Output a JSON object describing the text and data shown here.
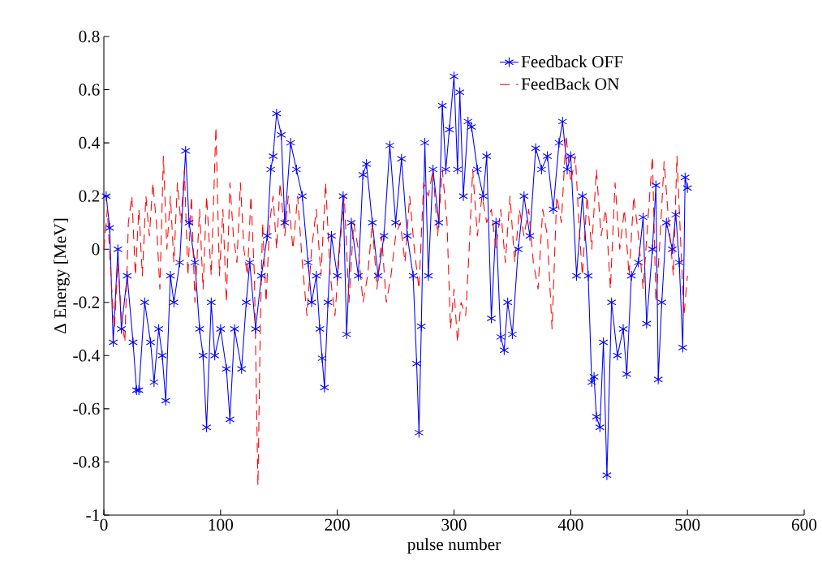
{
  "chart_data": {
    "type": "line",
    "xlabel": "pulse number",
    "ylabel": "Δ Energy [MeV]",
    "xlim": [
      0,
      600
    ],
    "ylim": [
      -1,
      0.8
    ],
    "xticks": [
      0,
      100,
      200,
      300,
      400,
      500,
      600
    ],
    "yticks": [
      -1,
      -0.8,
      -0.6,
      -0.4,
      -0.2,
      0,
      0.2,
      0.4,
      0.6,
      0.8
    ],
    "legend": "top right",
    "grid": false,
    "series": [
      {
        "name": "Feedback OFF",
        "color": "#0000ff",
        "marker": "cross",
        "line_style": "solid",
        "x": [
          2,
          5,
          8,
          12,
          15,
          20,
          25,
          28,
          30,
          35,
          40,
          43,
          47,
          50,
          53,
          57,
          60,
          65,
          70,
          73,
          78,
          82,
          85,
          88,
          92,
          95,
          100,
          105,
          108,
          112,
          118,
          122,
          125,
          130,
          135,
          140,
          143,
          145,
          148,
          152,
          155,
          160,
          165,
          170,
          175,
          178,
          182,
          185,
          187,
          189,
          192,
          195,
          200,
          205,
          208,
          212,
          218,
          222,
          225,
          230,
          235,
          240,
          245,
          250,
          255,
          260,
          265,
          268,
          270,
          272,
          275,
          278,
          282,
          287,
          290,
          293,
          296,
          300,
          303,
          305,
          308,
          312,
          315,
          320,
          325,
          328,
          332,
          336,
          340,
          343,
          346,
          350,
          355,
          360,
          365,
          370,
          375,
          380,
          385,
          390,
          393,
          397,
          400,
          405,
          410,
          415,
          418,
          420,
          422,
          425,
          428,
          431,
          435,
          440,
          445,
          448,
          452,
          458,
          462,
          465,
          470,
          473,
          475,
          478,
          482,
          487,
          490,
          493,
          496,
          498,
          500
        ],
        "values": [
          0.2,
          0.08,
          -0.35,
          0.0,
          -0.3,
          -0.1,
          -0.35,
          -0.53,
          -0.53,
          -0.2,
          -0.35,
          -0.5,
          -0.3,
          -0.4,
          -0.57,
          -0.1,
          -0.2,
          -0.05,
          0.37,
          0.1,
          -0.05,
          -0.3,
          -0.4,
          -0.67,
          -0.2,
          -0.4,
          -0.3,
          -0.45,
          -0.64,
          -0.3,
          -0.45,
          -0.2,
          -0.05,
          -0.3,
          -0.1,
          0.05,
          0.3,
          0.35,
          0.51,
          0.43,
          0.1,
          0.4,
          0.3,
          0.2,
          -0.05,
          -0.2,
          -0.1,
          -0.3,
          -0.41,
          -0.52,
          -0.2,
          0.05,
          -0.1,
          0.2,
          -0.32,
          0.1,
          -0.1,
          0.28,
          0.32,
          0.1,
          -0.1,
          0.05,
          0.39,
          0.1,
          0.34,
          0.05,
          -0.1,
          -0.43,
          -0.69,
          -0.29,
          0.4,
          -0.1,
          0.3,
          0.1,
          0.54,
          0.3,
          0.45,
          0.65,
          0.3,
          0.59,
          0.2,
          0.48,
          0.46,
          0.3,
          0.2,
          0.35,
          -0.26,
          0.1,
          -0.33,
          -0.38,
          -0.2,
          -0.32,
          0.0,
          0.2,
          0.05,
          0.38,
          0.3,
          0.35,
          0.15,
          0.4,
          0.48,
          0.3,
          0.35,
          -0.1,
          0.2,
          -0.1,
          -0.5,
          -0.48,
          -0.63,
          -0.67,
          -0.35,
          -0.85,
          -0.2,
          -0.4,
          -0.3,
          -0.47,
          -0.1,
          -0.05,
          0.12,
          -0.28,
          0.0,
          0.24,
          -0.49,
          -0.2,
          0.1,
          0.0,
          0.13,
          -0.05,
          -0.37,
          0.27,
          0.23
        ]
      },
      {
        "name": "FeedBack ON",
        "color": "#ff0000",
        "marker": "none",
        "line_style": "dashed",
        "x": [
          0,
          3,
          6,
          9,
          12,
          15,
          18,
          21,
          24,
          27,
          30,
          33,
          36,
          39,
          42,
          45,
          48,
          51,
          54,
          57,
          60,
          63,
          66,
          69,
          72,
          75,
          78,
          82,
          85,
          88,
          92,
          96,
          99,
          102,
          105,
          108,
          111,
          114,
          117,
          120,
          123,
          126,
          129,
          132,
          134,
          136,
          139,
          142,
          145,
          148,
          151,
          155,
          158,
          162,
          166,
          170,
          174,
          178,
          182,
          186,
          190,
          194,
          198,
          202,
          206,
          210,
          214,
          218,
          222,
          226,
          230,
          234,
          238,
          242,
          246,
          250,
          254,
          258,
          262,
          266,
          270,
          274,
          278,
          282,
          286,
          290,
          294,
          297,
          300,
          303,
          306,
          310,
          313,
          316,
          320,
          324,
          328,
          332,
          336,
          340,
          344,
          348,
          352,
          356,
          360,
          364,
          368,
          372,
          376,
          380,
          384,
          388,
          392,
          396,
          400,
          404,
          407,
          410,
          414,
          418,
          422,
          426,
          430,
          434,
          438,
          442,
          446,
          450,
          454,
          458,
          462,
          466,
          470,
          473,
          476,
          480,
          484,
          488,
          491,
          494,
          497,
          500
        ],
        "values": [
          0.0,
          0.15,
          -0.1,
          -0.3,
          -0.05,
          -0.25,
          -0.35,
          0.1,
          0.2,
          -0.1,
          0.15,
          -0.1,
          0.2,
          0.05,
          0.25,
          0.1,
          -0.15,
          0.35,
          0.0,
          0.2,
          -0.05,
          0.25,
          0.1,
          0.3,
          -0.1,
          0.2,
          -0.2,
          0.15,
          -0.15,
          0.2,
          -0.1,
          0.46,
          -0.1,
          0.15,
          -0.2,
          0.25,
          0.05,
          -0.05,
          0.25,
          0.0,
          -0.1,
          0.2,
          -0.1,
          -0.89,
          -0.3,
          0.1,
          -0.2,
          0.1,
          0.2,
          0.0,
          0.25,
          0.05,
          0.2,
          0.0,
          0.2,
          -0.05,
          -0.25,
          0.0,
          0.15,
          -0.1,
          0.25,
          -0.1,
          -0.25,
          0.0,
          0.2,
          -0.2,
          0.1,
          0.0,
          -0.2,
          -0.1,
          0.1,
          -0.15,
          0.05,
          -0.2,
          -0.1,
          0.05,
          0.1,
          -0.05,
          0.2,
          0.0,
          -0.15,
          0.25,
          0.2,
          0.3,
          0.05,
          0.3,
          0.1,
          -0.3,
          -0.15,
          -0.35,
          -0.2,
          -0.25,
          0.0,
          0.3,
          0.05,
          0.2,
          0.1,
          0.15,
          0.0,
          0.15,
          -0.05,
          0.2,
          -0.05,
          0.15,
          0.05,
          0.15,
          -0.05,
          -0.15,
          0.15,
          0.05,
          -0.3,
          0.2,
          0.1,
          0.43,
          0.25,
          0.35,
          0.1,
          -0.1,
          0.2,
          0.0,
          0.3,
          0.05,
          0.15,
          -0.15,
          0.25,
          0.0,
          0.15,
          -0.1,
          0.2,
          0.05,
          -0.15,
          0.1,
          0.35,
          -0.2,
          0.0,
          0.33,
          0.1,
          -0.1,
          0.35,
          0.05,
          -0.25,
          -0.1
        ]
      }
    ]
  }
}
